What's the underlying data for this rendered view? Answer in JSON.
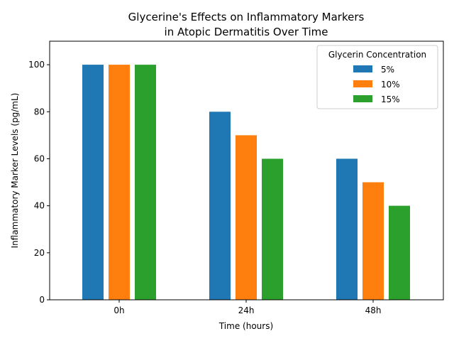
{
  "chart_data": {
    "type": "bar",
    "title_lines": [
      "Glycerine's Effects on Inflammatory Markers",
      "in Atopic Dermatitis Over Time"
    ],
    "xlabel": "Time (hours)",
    "ylabel": "Inflammatory Marker Levels (pg/mL)",
    "categories": [
      "0h",
      "24h",
      "48h"
    ],
    "ylim": [
      0,
      110
    ],
    "yticks": [
      0,
      20,
      40,
      60,
      80,
      100
    ],
    "legend": {
      "title": "Glycerin Concentration",
      "placement": "top-right"
    },
    "grid": false,
    "series": [
      {
        "name": "5%",
        "color": "#1f77b4",
        "values": [
          100,
          80,
          60
        ]
      },
      {
        "name": "10%",
        "color": "#ff7f0e",
        "values": [
          100,
          70,
          50
        ]
      },
      {
        "name": "15%",
        "color": "#2ca02c",
        "values": [
          100,
          60,
          40
        ]
      }
    ]
  }
}
